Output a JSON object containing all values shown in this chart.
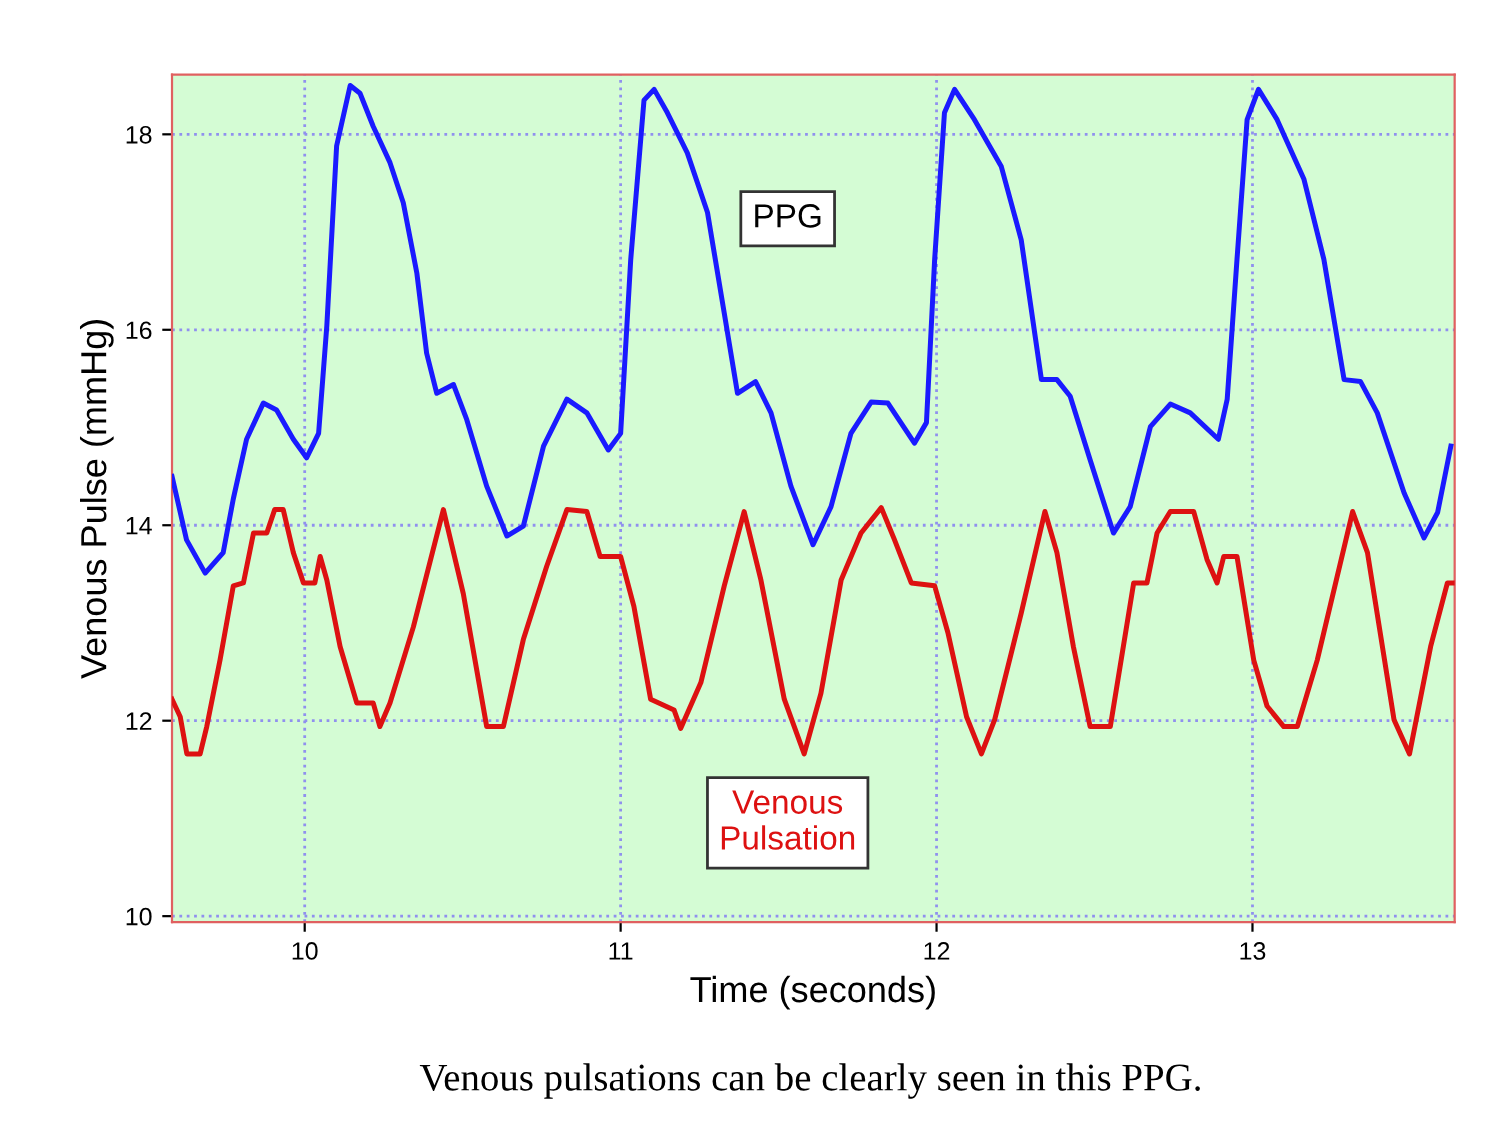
{
  "chart_data": {
    "type": "line",
    "xlabel": "Time (seconds)",
    "ylabel": "Venous Pulse (mmHg)",
    "xlim": [
      9.58,
      13.64
    ],
    "ylim": [
      9.94,
      18.61
    ],
    "xticks": [
      10,
      11,
      12,
      13
    ],
    "yticks": [
      10,
      12,
      14,
      16,
      18
    ],
    "grid": true,
    "legend": false,
    "marker": "none",
    "line_style": "solid",
    "annotations": [
      "Venous pulsations can be clearly seen in this PPG."
    ],
    "series": [
      {
        "name": "PPG",
        "color": "#1a1aff",
        "x": [
          9.58,
          9.626,
          9.685,
          9.742,
          9.774,
          9.816,
          9.869,
          9.911,
          9.964,
          10.006,
          10.044,
          10.07,
          10.101,
          10.144,
          10.175,
          10.217,
          10.27,
          10.312,
          10.355,
          10.386,
          10.418,
          10.471,
          10.513,
          10.576,
          10.64,
          10.692,
          10.756,
          10.83,
          10.893,
          10.961,
          11.0,
          11.032,
          11.074,
          11.106,
          11.148,
          11.211,
          11.275,
          11.328,
          11.37,
          11.427,
          11.476,
          11.539,
          11.609,
          11.666,
          11.729,
          11.793,
          11.846,
          11.93,
          11.968,
          11.994,
          12.025,
          12.057,
          12.12,
          12.205,
          12.268,
          12.332,
          12.381,
          12.423,
          12.486,
          12.56,
          12.613,
          12.677,
          12.74,
          12.803,
          12.892,
          12.92,
          12.951,
          12.983,
          13.019,
          13.078,
          13.163,
          13.226,
          13.29,
          13.342,
          13.395,
          13.48,
          13.543,
          13.586,
          13.628
        ],
        "values": [
          14.5,
          13.85,
          13.51,
          13.72,
          14.27,
          14.88,
          15.25,
          15.18,
          14.88,
          14.69,
          14.94,
          16.04,
          17.88,
          18.5,
          18.42,
          18.08,
          17.71,
          17.3,
          16.58,
          15.76,
          15.35,
          15.44,
          15.08,
          14.4,
          13.89,
          13.99,
          14.81,
          15.29,
          15.15,
          14.77,
          14.94,
          16.72,
          18.35,
          18.46,
          18.22,
          17.81,
          17.2,
          16.17,
          15.35,
          15.47,
          15.15,
          14.4,
          13.8,
          14.19,
          14.94,
          15.26,
          15.25,
          14.84,
          15.05,
          16.72,
          18.22,
          18.46,
          18.15,
          17.67,
          16.92,
          15.49,
          15.49,
          15.32,
          14.67,
          13.92,
          14.19,
          15.01,
          15.24,
          15.15,
          14.88,
          15.29,
          16.72,
          18.15,
          18.46,
          18.15,
          17.54,
          16.72,
          15.49,
          15.47,
          15.15,
          14.33,
          13.87,
          14.13,
          14.81
        ]
      },
      {
        "name": "Venous\nPulsation",
        "color": "#dd1111",
        "x": [
          9.58,
          9.606,
          9.627,
          9.669,
          9.69,
          9.732,
          9.774,
          9.806,
          9.838,
          9.88,
          9.905,
          9.932,
          9.964,
          9.996,
          10.032,
          10.049,
          10.07,
          10.112,
          10.165,
          10.217,
          10.238,
          10.27,
          10.344,
          10.439,
          10.502,
          10.576,
          10.629,
          10.692,
          10.766,
          10.83,
          10.893,
          10.935,
          11.0,
          11.042,
          11.095,
          11.169,
          11.19,
          11.254,
          11.328,
          11.391,
          11.444,
          11.518,
          11.581,
          11.634,
          11.698,
          11.761,
          11.825,
          11.867,
          11.92,
          11.994,
          12.036,
          12.095,
          12.142,
          12.184,
          12.268,
          12.343,
          12.381,
          12.433,
          12.486,
          12.55,
          12.624,
          12.666,
          12.698,
          12.74,
          12.814,
          12.856,
          12.888,
          12.909,
          12.951,
          13.004,
          13.046,
          13.099,
          13.142,
          13.205,
          13.317,
          13.364,
          13.448,
          13.497,
          13.564,
          13.617,
          13.634
        ],
        "values": [
          12.22,
          12.04,
          11.66,
          11.66,
          11.94,
          12.62,
          13.38,
          13.41,
          13.92,
          13.92,
          14.16,
          14.16,
          13.72,
          13.41,
          13.41,
          13.68,
          13.44,
          12.76,
          12.18,
          12.18,
          11.94,
          12.18,
          12.96,
          14.16,
          13.3,
          11.94,
          11.94,
          12.83,
          13.58,
          14.16,
          14.14,
          13.68,
          13.68,
          13.17,
          12.22,
          12.11,
          11.92,
          12.39,
          13.38,
          14.14,
          13.44,
          12.22,
          11.66,
          12.28,
          13.44,
          13.92,
          14.18,
          13.85,
          13.41,
          13.38,
          12.9,
          12.04,
          11.66,
          12.01,
          13.1,
          14.14,
          13.72,
          12.76,
          11.94,
          11.94,
          13.41,
          13.41,
          13.92,
          14.14,
          14.14,
          13.65,
          13.41,
          13.68,
          13.68,
          12.62,
          12.15,
          11.94,
          11.94,
          12.62,
          14.14,
          13.72,
          12.01,
          11.66,
          12.76,
          13.41,
          13.41
        ]
      }
    ]
  }
}
